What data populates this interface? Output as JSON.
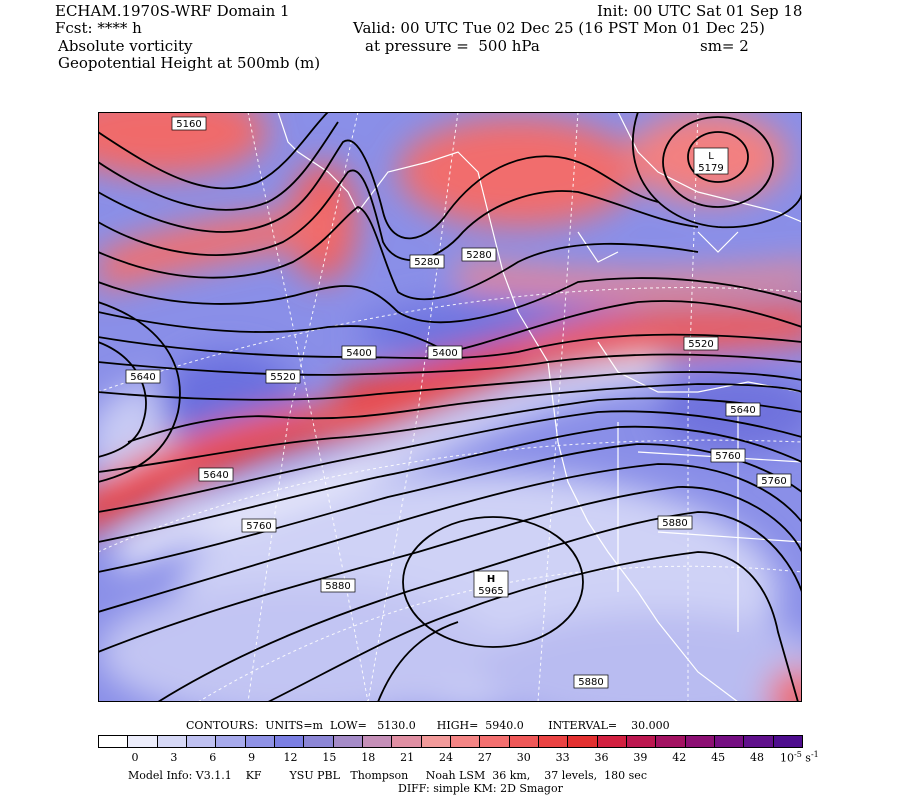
{
  "header": {
    "model_title": "ECHAM.1970S-WRF Domain 1",
    "init": "Init: 00 UTC Sat 01 Sep 18",
    "fcst": "Fcst: **** h",
    "valid": "Valid: 00 UTC Tue 02 Dec 25 (16 PST Mon 01 Dec 25)",
    "field_1": "Absolute vorticity",
    "pressure": "at pressure =  500 hPa",
    "smoothing": "sm= 2",
    "field_2": "Geopotential Height at 500mb (m)"
  },
  "map": {
    "contour_labels": [
      "5160",
      "5280",
      "5280",
      "5400",
      "5400",
      "5520",
      "5520",
      "5640",
      "5640",
      "5640",
      "5760",
      "5760",
      "5760",
      "5880",
      "5880",
      "5880"
    ],
    "low_marker": {
      "symbol": "L",
      "value": "5179"
    },
    "high_marker": {
      "symbol": "H",
      "value": "5965"
    }
  },
  "footer": {
    "contours": "CONTOURS:  UNITS=m  LOW=   5130.0      HIGH=  5940.0       INTERVAL=    30.000",
    "model_info": "Model Info: V3.1.1    KF        YSU PBL   Thompson     Noah LSM  36 km,    37 levels,  180 sec",
    "diff": "DIFF: simple KM: 2D Smagor"
  },
  "colorbar": {
    "labels": [
      "0",
      "3",
      "6",
      "9",
      "12",
      "15",
      "18",
      "21",
      "24",
      "27",
      "30",
      "33",
      "36",
      "39",
      "42",
      "45",
      "48"
    ],
    "units_base": "10",
    "units_exp": "-5",
    "units_tail": "s",
    "units_tail_exp": "-1",
    "colors": [
      "#ffffff",
      "#ecedfb",
      "#d6d8f6",
      "#bfc1f1",
      "#a7aaec",
      "#8f92e6",
      "#7b7fe3",
      "#8c86d6",
      "#a58bc8",
      "#c58fb8",
      "#e08fa3",
      "#f29a9a",
      "#f48585",
      "#f36f6f",
      "#ef5858",
      "#ea4343",
      "#e33030",
      "#d22040",
      "#bc1750",
      "#a31262",
      "#8c0f73",
      "#750e82",
      "#60108c",
      "#4e0d8e"
    ]
  }
}
